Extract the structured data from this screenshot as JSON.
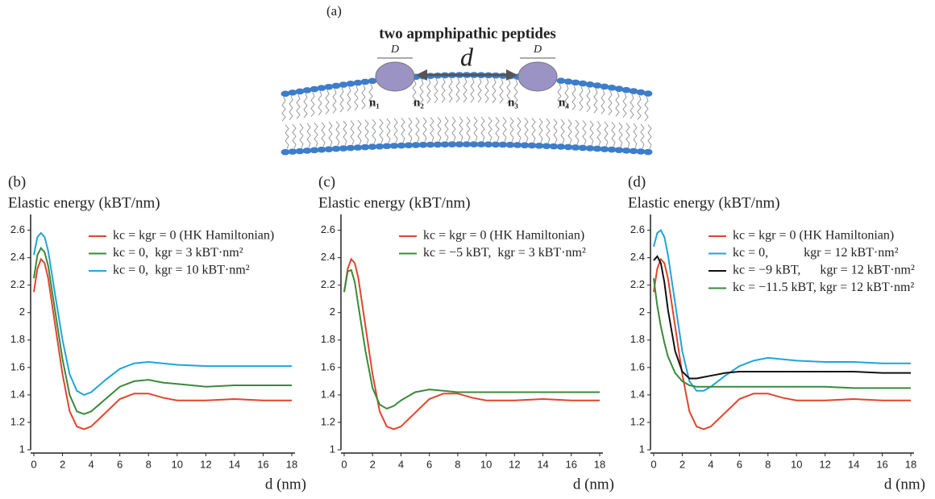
{
  "diagram": {
    "label": "(a)",
    "title": "two apmphipathic peptides",
    "peptide_size": [
      "D",
      "D"
    ],
    "distance": "d",
    "normals": [
      "n₁",
      "n₂",
      "n₃",
      "n₄"
    ]
  },
  "chart_data": [
    {
      "type": "line",
      "panel": "(b)",
      "ylabel": "Elastic energy (kBT/nm)",
      "xlabel": "d (nm)",
      "x": [
        0,
        0.25,
        0.5,
        0.75,
        1,
        1.5,
        2,
        2.5,
        3,
        3.5,
        4,
        5,
        6,
        7,
        8,
        9,
        10,
        12,
        14,
        16,
        18
      ],
      "series": [
        {
          "name": "kc = kgr = 0 (HK Hamiltonian)",
          "color": "#e0452d",
          "values": [
            2.15,
            2.32,
            2.39,
            2.36,
            2.25,
            1.9,
            1.55,
            1.28,
            1.17,
            1.15,
            1.17,
            1.27,
            1.37,
            1.41,
            1.41,
            1.38,
            1.36,
            1.36,
            1.37,
            1.36,
            1.36
          ]
        },
        {
          "name": "kc = 0,  kgr = 3 kBT·nm²",
          "color": "#3a8a3a",
          "values": [
            2.25,
            2.42,
            2.47,
            2.44,
            2.34,
            2.0,
            1.66,
            1.4,
            1.28,
            1.26,
            1.28,
            1.37,
            1.46,
            1.5,
            1.51,
            1.49,
            1.48,
            1.46,
            1.47,
            1.47,
            1.47
          ]
        },
        {
          "name": "kc = 0,  kgr = 10 kBT·nm²",
          "color": "#1ea5dc",
          "values": [
            2.42,
            2.55,
            2.58,
            2.55,
            2.45,
            2.12,
            1.8,
            1.55,
            1.43,
            1.4,
            1.42,
            1.51,
            1.59,
            1.63,
            1.64,
            1.63,
            1.62,
            1.61,
            1.61,
            1.61,
            1.61
          ]
        }
      ],
      "xlim": [
        0,
        18
      ],
      "ylim": [
        1,
        2.68
      ],
      "xticks": [
        0,
        2,
        4,
        6,
        8,
        10,
        12,
        14,
        16,
        18
      ],
      "yticks": [
        1,
        1.2,
        1.4,
        1.6,
        1.8,
        2,
        2.2,
        2.4,
        2.6
      ]
    },
    {
      "type": "line",
      "panel": "(c)",
      "ylabel": "Elastic energy (kBT/nm)",
      "xlabel": "d (nm)",
      "x": [
        0,
        0.25,
        0.5,
        0.75,
        1,
        1.5,
        2,
        2.5,
        3,
        3.5,
        4,
        5,
        6,
        7,
        8,
        9,
        10,
        12,
        14,
        16,
        18
      ],
      "series": [
        {
          "name": "kc = kgr = 0 (HK Hamiltonian)",
          "color": "#e0452d",
          "values": [
            2.15,
            2.32,
            2.39,
            2.36,
            2.25,
            1.9,
            1.55,
            1.28,
            1.17,
            1.15,
            1.17,
            1.27,
            1.37,
            1.41,
            1.41,
            1.38,
            1.36,
            1.36,
            1.37,
            1.36,
            1.36
          ]
        },
        {
          "name": "kc = −5 kBT,  kgr = 3 kBT·nm²",
          "color": "#3a8a3a",
          "values": [
            2.15,
            2.3,
            2.31,
            2.22,
            2.05,
            1.72,
            1.45,
            1.33,
            1.3,
            1.32,
            1.36,
            1.42,
            1.44,
            1.43,
            1.42,
            1.42,
            1.42,
            1.42,
            1.42,
            1.42,
            1.42
          ]
        }
      ],
      "xlim": [
        0,
        18
      ],
      "ylim": [
        1,
        2.68
      ],
      "xticks": [
        0,
        2,
        4,
        6,
        8,
        10,
        12,
        14,
        16,
        18
      ],
      "yticks": [
        1,
        1.2,
        1.4,
        1.6,
        1.8,
        2,
        2.2,
        2.4,
        2.6
      ]
    },
    {
      "type": "line",
      "panel": "(d)",
      "ylabel": "Elastic energy (kBT/nm)",
      "xlabel": "d (nm)",
      "x": [
        0,
        0.25,
        0.5,
        0.75,
        1,
        1.5,
        2,
        2.5,
        3,
        3.5,
        4,
        5,
        6,
        7,
        8,
        9,
        10,
        12,
        14,
        16,
        18
      ],
      "series": [
        {
          "name": "kc = kgr = 0 (HK Hamiltonian)",
          "color": "#e0452d",
          "values": [
            2.15,
            2.32,
            2.39,
            2.36,
            2.25,
            1.9,
            1.55,
            1.28,
            1.17,
            1.15,
            1.17,
            1.27,
            1.37,
            1.41,
            1.41,
            1.38,
            1.36,
            1.36,
            1.37,
            1.36,
            1.36
          ]
        },
        {
          "name": "kc = 0,           kgr = 12 kBT·nm²",
          "color": "#1ea5dc",
          "values": [
            2.48,
            2.58,
            2.6,
            2.55,
            2.42,
            2.07,
            1.72,
            1.5,
            1.43,
            1.43,
            1.46,
            1.54,
            1.61,
            1.65,
            1.67,
            1.66,
            1.65,
            1.64,
            1.64,
            1.63,
            1.63
          ]
        },
        {
          "name": "kc = −9 kBT,      kgr = 12 kBT·nm²",
          "color": "#111111",
          "values": [
            2.38,
            2.41,
            2.36,
            2.22,
            2.02,
            1.72,
            1.57,
            1.52,
            1.52,
            1.53,
            1.54,
            1.56,
            1.57,
            1.57,
            1.57,
            1.57,
            1.57,
            1.57,
            1.57,
            1.56,
            1.56
          ]
        },
        {
          "name": "kc = −11.5 kBT, kgr = 12 kBT·nm²",
          "color": "#3a8a3a",
          "values": [
            2.25,
            2.05,
            1.9,
            1.78,
            1.68,
            1.56,
            1.5,
            1.47,
            1.46,
            1.46,
            1.46,
            1.46,
            1.46,
            1.46,
            1.46,
            1.46,
            1.46,
            1.46,
            1.45,
            1.45,
            1.45
          ]
        }
      ],
      "xlim": [
        0,
        18
      ],
      "ylim": [
        1,
        2.68
      ],
      "xticks": [
        0,
        2,
        4,
        6,
        8,
        10,
        12,
        14,
        16,
        18
      ],
      "yticks": [
        1,
        1.2,
        1.4,
        1.6,
        1.8,
        2,
        2.2,
        2.4,
        2.6
      ]
    }
  ]
}
